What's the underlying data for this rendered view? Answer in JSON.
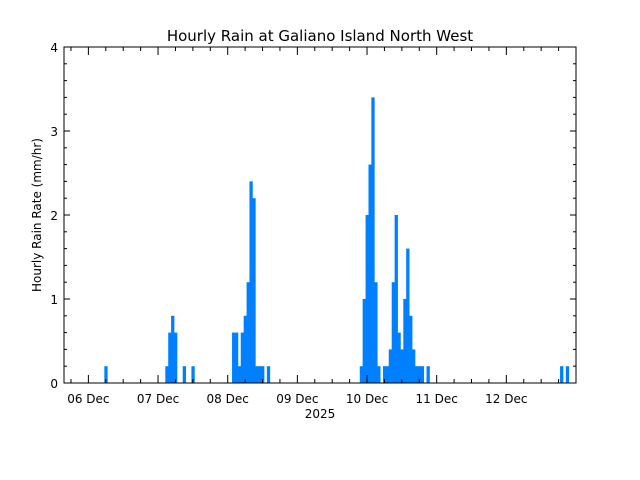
{
  "chart_data": {
    "type": "bar",
    "title": "Hourly Rain at Galiano Island North West",
    "xlabel": "2025",
    "ylabel": "Hourly Rain Rate (mm/hr)",
    "ylim": [
      0,
      4
    ],
    "xlim": [
      -0.35,
      7.0
    ],
    "yticks": [
      0,
      1,
      2,
      3,
      4
    ],
    "yticklabels": [
      "0",
      "1",
      "2",
      "3",
      "4"
    ],
    "xticks": [
      0,
      1,
      2,
      3,
      4,
      5,
      6
    ],
    "xticklabels": [
      "06 Dec",
      "07 Dec",
      "08 Dec",
      "09 Dec",
      "10 Dec",
      "11 Dec",
      "12 Dec"
    ],
    "bar_color": "#0080ff",
    "grid": false,
    "series": [
      {
        "x": [
          0.25,
          1.125,
          1.167,
          1.208,
          1.25,
          1.375,
          1.5,
          2.083,
          2.125,
          2.167,
          2.208,
          2.25,
          2.292,
          2.333,
          2.375,
          2.417,
          2.458,
          2.5,
          2.583,
          3.917,
          3.958,
          4.0,
          4.042,
          4.083,
          4.125,
          4.167,
          4.25,
          4.292,
          4.333,
          4.375,
          4.417,
          4.458,
          4.5,
          4.542,
          4.583,
          4.625,
          4.667,
          4.708,
          4.75,
          4.792,
          4.875,
          6.792,
          6.875
        ],
        "values": [
          0.2,
          0.2,
          0.6,
          0.8,
          0.6,
          0.2,
          0.2,
          0.6,
          0.6,
          0.2,
          0.6,
          0.8,
          1.2,
          2.4,
          2.2,
          0.2,
          0.2,
          0.2,
          0.2,
          0.2,
          1.0,
          2.0,
          2.6,
          3.4,
          1.2,
          0.2,
          0.2,
          0.2,
          0.4,
          1.2,
          2.0,
          0.6,
          0.4,
          1.0,
          1.6,
          0.8,
          0.4,
          0.2,
          0.2,
          0.2,
          0.2,
          0.2,
          0.2
        ]
      }
    ]
  }
}
